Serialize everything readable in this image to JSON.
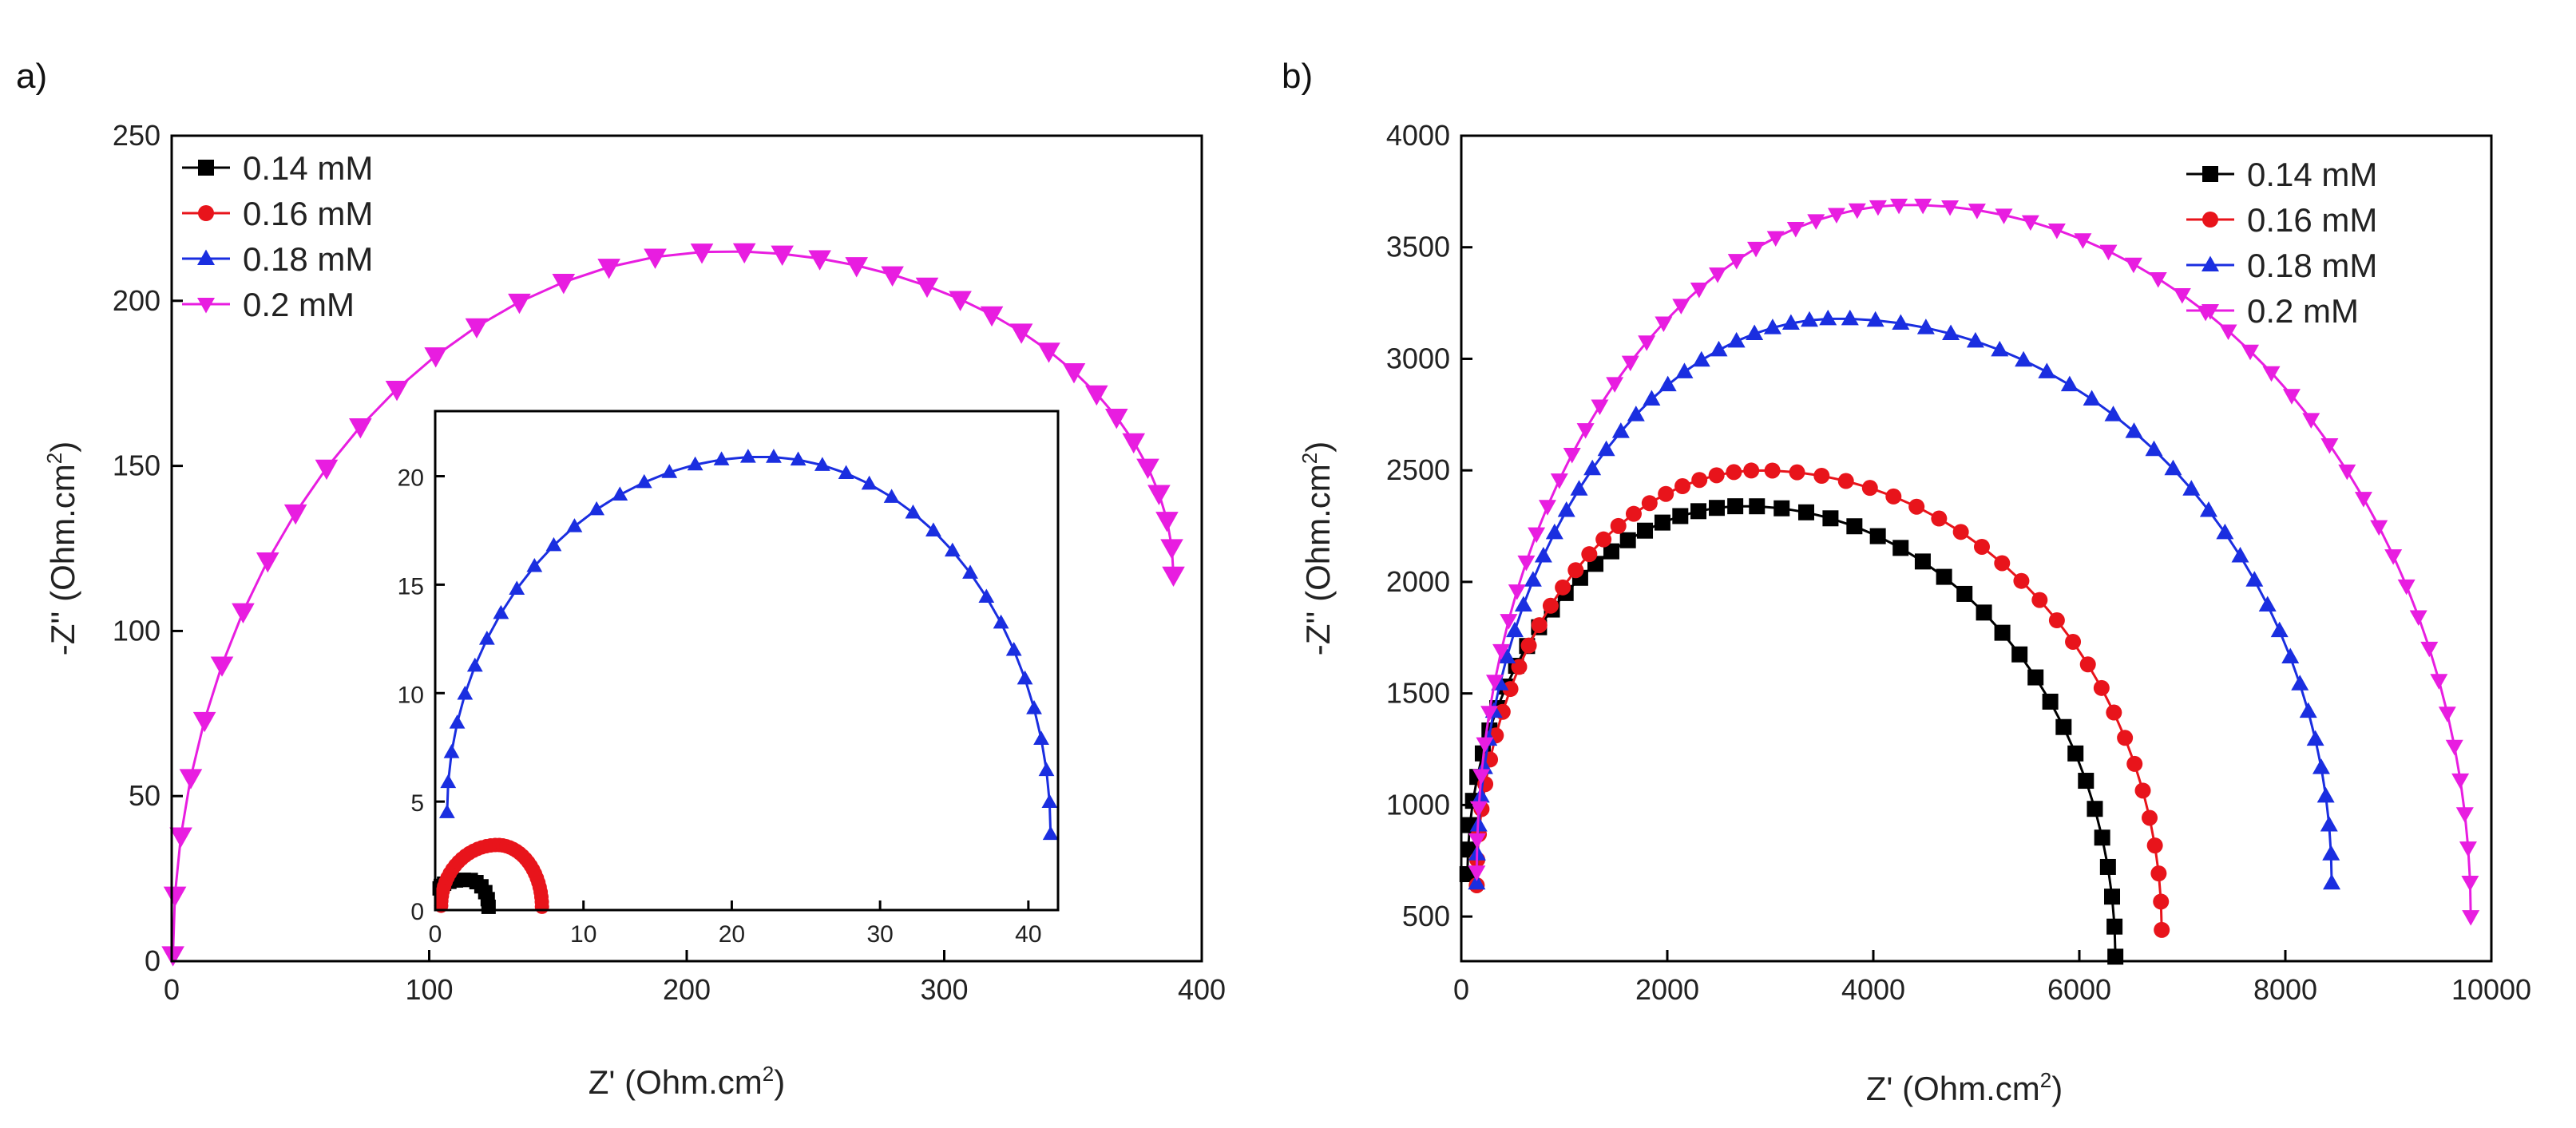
{
  "figure": {
    "panel_labels": [
      "a)",
      "b)"
    ]
  },
  "chart_data": [
    {
      "type": "line",
      "panel": "a)",
      "title": "",
      "xlabel": "Z' (Ohm.cm",
      "xlabel_sup": "2",
      "xlabel_end": ")",
      "ylabel": "-Z'' (Ohm.cm",
      "ylabel_sup": "2",
      "ylabel_end": ")",
      "xlim": [
        0,
        400
      ],
      "ylim": [
        0,
        250
      ],
      "xticks": [
        0,
        100,
        200,
        300,
        400
      ],
      "yticks": [
        0,
        50,
        100,
        150,
        200,
        250
      ],
      "legend_position": "top-left",
      "series": [
        {
          "name": "0.14 mM",
          "color": "#000000",
          "marker": "square",
          "points": []
        },
        {
          "name": "0.16 mM",
          "color": "#e8141b",
          "marker": "circle",
          "points": []
        },
        {
          "name": "0.18 mM",
          "color": "#1a2ee0",
          "marker": "triangle-up",
          "points": []
        },
        {
          "name": "0.2 mM",
          "color": "#e81de0",
          "marker": "triangle-down",
          "shape": "arc",
          "start": [
            0.5,
            2
          ],
          "peak": [
            215,
            215
          ],
          "end": [
            389,
            117
          ],
          "n": 38
        }
      ],
      "inset": {
        "xlim": [
          0,
          42
        ],
        "ylim": [
          0,
          23
        ],
        "xticks": [
          0,
          10,
          20,
          30,
          40
        ],
        "yticks": [
          0,
          5,
          10,
          15,
          20
        ],
        "series": [
          {
            "name": "0.14 mM",
            "color": "#000000",
            "marker": "square",
            "shape": "arc",
            "start": [
              0.3,
              1.0
            ],
            "peak": [
              2.2,
              1.4
            ],
            "end": [
              3.6,
              0.15
            ],
            "n": 12
          },
          {
            "name": "0.16 mM",
            "color": "#e8141b",
            "marker": "circle",
            "shape": "arc",
            "start": [
              0.4,
              0.2
            ],
            "peak": [
              4.2,
              3.0
            ],
            "end": [
              7.2,
              0.15
            ],
            "n": 40
          },
          {
            "name": "0.18 mM",
            "color": "#1a2ee0",
            "marker": "triangle-up",
            "shape": "arc",
            "start": [
              0.8,
              4.5
            ],
            "peak": [
              22,
              20.9
            ],
            "end": [
              41.5,
              3.5
            ],
            "n": 38
          }
        ]
      }
    },
    {
      "type": "line",
      "panel": "b)",
      "title": "",
      "xlabel": "Z' (Ohm.cm",
      "xlabel_sup": "2",
      "xlabel_end": ")",
      "ylabel": "-Z'' (Ohm.cm",
      "ylabel_sup": "2",
      "ylabel_end": ")",
      "xlim": [
        0,
        10000
      ],
      "ylim": [
        300,
        4000
      ],
      "xticks": [
        0,
        2000,
        4000,
        6000,
        8000,
        10000
      ],
      "yticks": [
        500,
        1000,
        1500,
        2000,
        2500,
        3000,
        3500,
        4000
      ],
      "legend_position": "top-right",
      "series": [
        {
          "name": "0.14 mM",
          "color": "#000000",
          "marker": "square",
          "shape": "arc",
          "start": [
            60,
            690
          ],
          "peak": [
            2750,
            2340
          ],
          "end": [
            6350,
            320
          ],
          "n": 48
        },
        {
          "name": "0.16 mM",
          "color": "#e8141b",
          "marker": "circle",
          "shape": "arc",
          "start": [
            150,
            640
          ],
          "peak": [
            2900,
            2500
          ],
          "end": [
            6800,
            440
          ],
          "n": 52
        },
        {
          "name": "0.18 mM",
          "color": "#1a2ee0",
          "marker": "triangle-up",
          "shape": "arc",
          "start": [
            150,
            650
          ],
          "peak": [
            3650,
            3180
          ],
          "end": [
            8450,
            650
          ],
          "n": 62
        },
        {
          "name": "0.2 mM",
          "color": "#e81de0",
          "marker": "triangle-down",
          "shape": "arc",
          "start": [
            150,
            700
          ],
          "peak": [
            4350,
            3690
          ],
          "end": [
            9800,
            500
          ],
          "n": 66
        }
      ]
    }
  ]
}
